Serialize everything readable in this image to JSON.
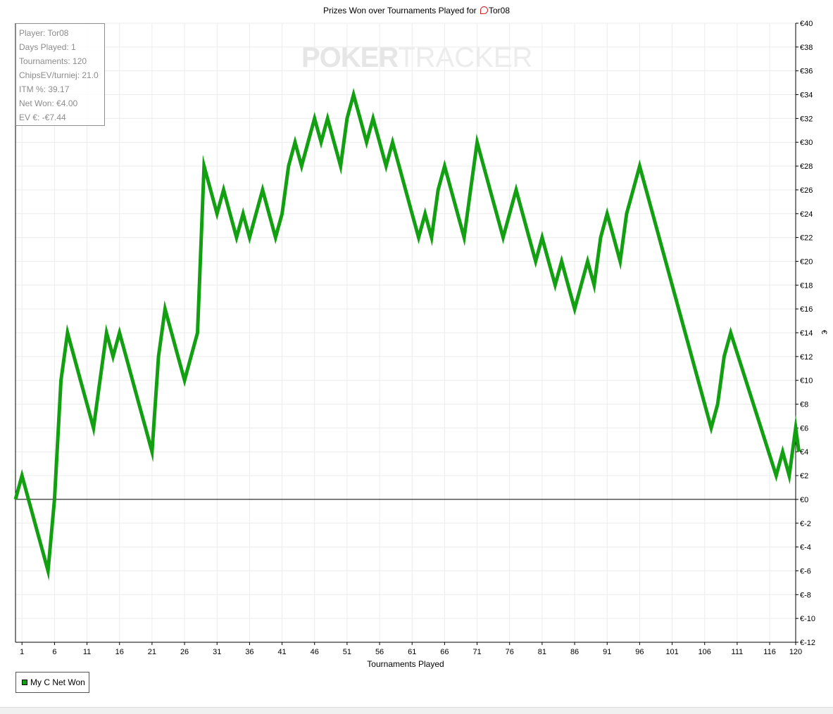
{
  "chart_data": {
    "type": "line",
    "title": "Prizes Won over Tournaments Played for",
    "title_player": "Tor08",
    "xlabel": "Tournaments Played",
    "ylabel": "€",
    "ylim": [
      -12,
      40
    ],
    "ytick_step": 2,
    "xlim": [
      0,
      120
    ],
    "xticks": [
      1,
      6,
      11,
      16,
      21,
      26,
      31,
      36,
      41,
      46,
      51,
      56,
      61,
      66,
      71,
      76,
      81,
      86,
      91,
      96,
      101,
      106,
      111,
      116,
      120
    ],
    "grid": true,
    "legend_position": "bottom-left",
    "series": [
      {
        "name": "My C Net Won",
        "color": "#12a012",
        "x": [
          0,
          1,
          5,
          6,
          7,
          8,
          9,
          10,
          11,
          12,
          13,
          14,
          15,
          16,
          17,
          18,
          19,
          20,
          21,
          22,
          23,
          24,
          25,
          26,
          27,
          28,
          29,
          30,
          31,
          32,
          33,
          34,
          35,
          36,
          37,
          38,
          39,
          40,
          41,
          42,
          43,
          44,
          45,
          46,
          47,
          48,
          49,
          50,
          51,
          52,
          53,
          54,
          55,
          56,
          57,
          58,
          59,
          60,
          61,
          62,
          63,
          64,
          65,
          66,
          67,
          68,
          69,
          70,
          71,
          72,
          73,
          74,
          75,
          76,
          77,
          78,
          79,
          80,
          81,
          82,
          83,
          84,
          85,
          86,
          87,
          88,
          89,
          90,
          91,
          92,
          93,
          94,
          95,
          96,
          107,
          108,
          109,
          110,
          117,
          118,
          119,
          120,
          121
        ],
        "values": [
          0,
          2,
          -6,
          0,
          10,
          14,
          12,
          10,
          8,
          6,
          10,
          14,
          12,
          14,
          12,
          10,
          8,
          6,
          4,
          12,
          16,
          14,
          12,
          10,
          12,
          14,
          28,
          26,
          24,
          26,
          24,
          22,
          24,
          22,
          24,
          26,
          24,
          22,
          24,
          28,
          30,
          28,
          30,
          32,
          30,
          32,
          30,
          28,
          32,
          34,
          32,
          30,
          32,
          30,
          28,
          30,
          28,
          26,
          24,
          22,
          24,
          22,
          26,
          28,
          26,
          24,
          22,
          26,
          30,
          28,
          26,
          24,
          22,
          24,
          26,
          24,
          22,
          20,
          22,
          20,
          18,
          20,
          18,
          16,
          18,
          20,
          18,
          22,
          24,
          22,
          20,
          24,
          26,
          28,
          6,
          8,
          12,
          14,
          2,
          4,
          2,
          6,
          4
        ]
      }
    ]
  },
  "stats": {
    "player": "Player: Tor08",
    "days_played": "Days Played: 1",
    "tournaments": "Tournaments: 120",
    "chipsev": "ChipsEV/turniej: 21.0",
    "itm": "ITM %: 39.17",
    "net_won": "Net Won: €4.00",
    "ev": "EV €: -€7.44"
  },
  "watermark": {
    "poker": "POKER",
    "tracker": "TRACKER"
  },
  "legend": {
    "label": "My C Net Won"
  }
}
